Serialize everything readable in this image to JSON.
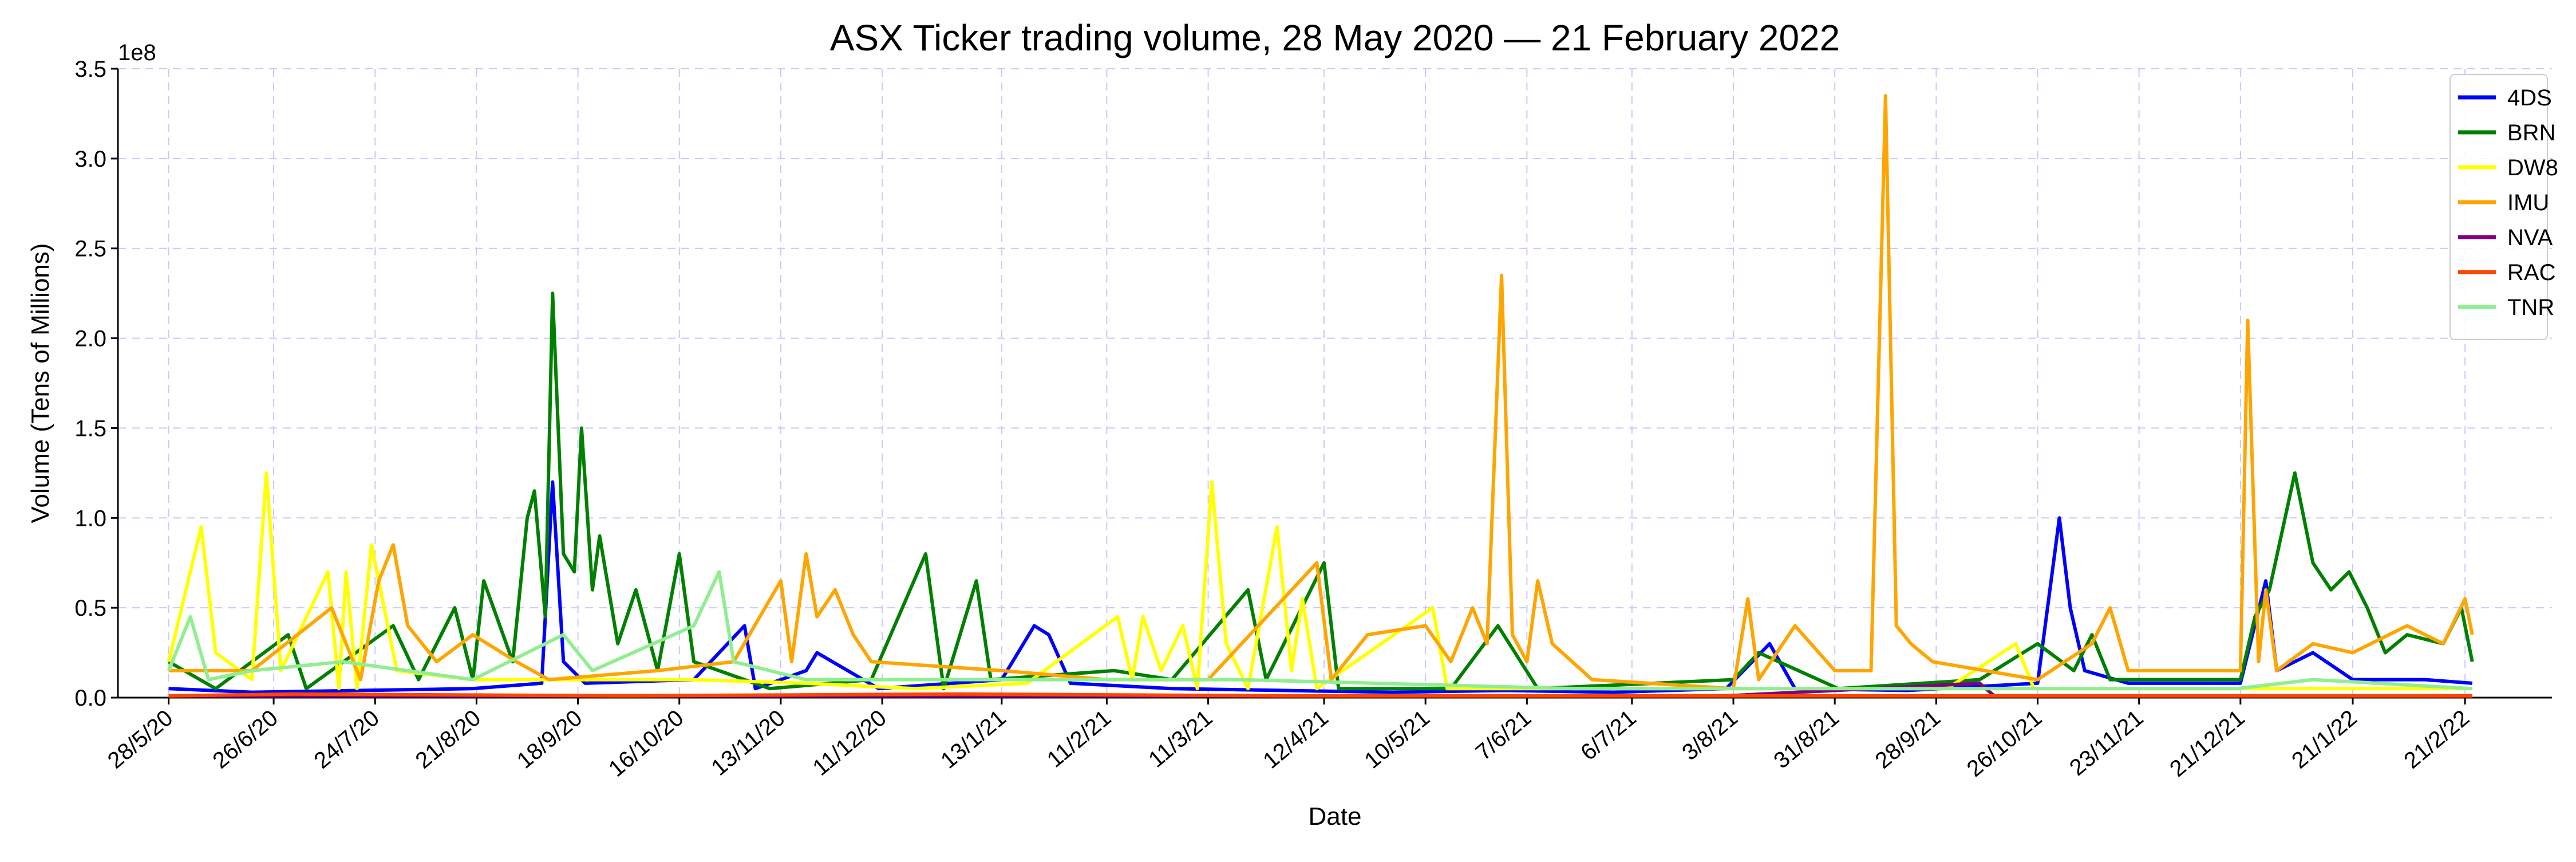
{
  "chart_data": {
    "type": "line",
    "title": "ASX Ticker trading volume, 28 May 2020 — 21 February 2022",
    "xlabel": "Date",
    "ylabel": "Volume (Tens of Millions)",
    "y_offset_text": "1e8",
    "ylim": [
      0,
      350000000
    ],
    "yticks": [
      0,
      50000000,
      100000000,
      150000000,
      200000000,
      250000000,
      300000000,
      350000000
    ],
    "ytick_labels": [
      "0.0",
      "0.5",
      "1.0",
      "1.5",
      "2.0",
      "2.5",
      "3.0",
      "3.5"
    ],
    "xlim": [
      "2020-05-14",
      "2022-03-17"
    ],
    "xticks": [
      "2020-05-28",
      "2020-06-26",
      "2020-07-24",
      "2020-08-21",
      "2020-09-18",
      "2020-10-16",
      "2020-11-13",
      "2020-12-11",
      "2021-01-13",
      "2021-02-11",
      "2021-03-11",
      "2021-04-12",
      "2021-05-10",
      "2021-06-07",
      "2021-07-06",
      "2021-08-03",
      "2021-08-31",
      "2021-09-28",
      "2021-10-26",
      "2021-11-23",
      "2021-12-21",
      "2022-01-21",
      "2022-02-21"
    ],
    "xtick_labels": [
      "28/5/20",
      "26/6/20",
      "24/7/20",
      "21/8/20",
      "18/9/20",
      "16/10/20",
      "13/11/20",
      "11/12/20",
      "13/1/21",
      "11/2/21",
      "11/3/21",
      "12/4/21",
      "10/5/21",
      "7/6/21",
      "6/7/21",
      "3/8/21",
      "31/8/21",
      "28/9/21",
      "26/10/21",
      "23/11/21",
      "21/12/21",
      "21/1/22",
      "21/2/22"
    ],
    "grid": true,
    "legend_position": "top-right",
    "series": [
      {
        "name": "4DS",
        "color": "#0000ff",
        "points": [
          [
            "2020-05-28",
            5000000
          ],
          [
            "2020-06-20",
            3000000
          ],
          [
            "2020-07-20",
            4000000
          ],
          [
            "2020-08-20",
            5000000
          ],
          [
            "2020-09-08",
            8000000
          ],
          [
            "2020-09-11",
            120000000
          ],
          [
            "2020-09-14",
            20000000
          ],
          [
            "2020-09-20",
            8000000
          ],
          [
            "2020-10-20",
            10000000
          ],
          [
            "2020-11-03",
            40000000
          ],
          [
            "2020-11-06",
            5000000
          ],
          [
            "2020-11-20",
            15000000
          ],
          [
            "2020-11-23",
            25000000
          ],
          [
            "2020-12-10",
            5000000
          ],
          [
            "2021-01-13",
            10000000
          ],
          [
            "2021-01-22",
            40000000
          ],
          [
            "2021-01-26",
            35000000
          ],
          [
            "2021-02-01",
            8000000
          ],
          [
            "2021-03-01",
            5000000
          ],
          [
            "2021-04-01",
            4000000
          ],
          [
            "2021-05-01",
            3000000
          ],
          [
            "2021-06-01",
            4000000
          ],
          [
            "2021-07-01",
            3000000
          ],
          [
            "2021-08-01",
            5000000
          ],
          [
            "2021-08-13",
            30000000
          ],
          [
            "2021-08-20",
            5000000
          ],
          [
            "2021-09-20",
            4000000
          ],
          [
            "2021-10-26",
            8000000
          ],
          [
            "2021-11-01",
            100000000
          ],
          [
            "2021-11-04",
            50000000
          ],
          [
            "2021-11-08",
            15000000
          ],
          [
            "2021-11-20",
            8000000
          ],
          [
            "2021-12-21",
            8000000
          ],
          [
            "2021-12-28",
            65000000
          ],
          [
            "2021-12-31",
            15000000
          ],
          [
            "2022-01-10",
            25000000
          ],
          [
            "2022-01-21",
            10000000
          ],
          [
            "2022-02-10",
            10000000
          ],
          [
            "2022-02-23",
            8000000
          ]
        ]
      },
      {
        "name": "BRN",
        "color": "#008000",
        "points": [
          [
            "2020-05-28",
            20000000
          ],
          [
            "2020-06-10",
            5000000
          ],
          [
            "2020-06-30",
            35000000
          ],
          [
            "2020-07-05",
            5000000
          ],
          [
            "2020-07-29",
            40000000
          ],
          [
            "2020-08-05",
            10000000
          ],
          [
            "2020-08-15",
            50000000
          ],
          [
            "2020-08-20",
            10000000
          ],
          [
            "2020-08-23",
            65000000
          ],
          [
            "2020-08-31",
            20000000
          ],
          [
            "2020-09-04",
            100000000
          ],
          [
            "2020-09-06",
            115000000
          ],
          [
            "2020-09-09",
            45000000
          ],
          [
            "2020-09-11",
            225000000
          ],
          [
            "2020-09-14",
            80000000
          ],
          [
            "2020-09-17",
            70000000
          ],
          [
            "2020-09-19",
            150000000
          ],
          [
            "2020-09-22",
            60000000
          ],
          [
            "2020-09-24",
            90000000
          ],
          [
            "2020-09-29",
            30000000
          ],
          [
            "2020-10-04",
            60000000
          ],
          [
            "2020-10-10",
            15000000
          ],
          [
            "2020-10-16",
            80000000
          ],
          [
            "2020-10-20",
            20000000
          ],
          [
            "2020-11-10",
            5000000
          ],
          [
            "2020-12-08",
            10000000
          ],
          [
            "2020-12-23",
            80000000
          ],
          [
            "2020-12-28",
            5000000
          ],
          [
            "2021-01-06",
            65000000
          ],
          [
            "2021-01-10",
            10000000
          ],
          [
            "2021-02-13",
            15000000
          ],
          [
            "2021-03-01",
            10000000
          ],
          [
            "2021-03-22",
            60000000
          ],
          [
            "2021-03-27",
            10000000
          ],
          [
            "2021-04-12",
            75000000
          ],
          [
            "2021-04-16",
            5000000
          ],
          [
            "2021-05-17",
            5000000
          ],
          [
            "2021-05-30",
            40000000
          ],
          [
            "2021-06-10",
            5000000
          ],
          [
            "2021-08-03",
            10000000
          ],
          [
            "2021-08-10",
            25000000
          ],
          [
            "2021-09-01",
            5000000
          ],
          [
            "2021-10-10",
            10000000
          ],
          [
            "2021-10-26",
            30000000
          ],
          [
            "2021-11-05",
            15000000
          ],
          [
            "2021-11-10",
            35000000
          ],
          [
            "2021-11-15",
            10000000
          ],
          [
            "2021-12-21",
            10000000
          ],
          [
            "2021-12-25",
            45000000
          ],
          [
            "2021-12-29",
            60000000
          ],
          [
            "2022-01-05",
            125000000
          ],
          [
            "2022-01-10",
            75000000
          ],
          [
            "2022-01-15",
            60000000
          ],
          [
            "2022-01-20",
            70000000
          ],
          [
            "2022-01-25",
            50000000
          ],
          [
            "2022-01-30",
            25000000
          ],
          [
            "2022-02-05",
            35000000
          ],
          [
            "2022-02-15",
            30000000
          ],
          [
            "2022-02-20",
            50000000
          ],
          [
            "2022-02-23",
            20000000
          ]
        ]
      },
      {
        "name": "DW8",
        "color": "#ffff00",
        "points": [
          [
            "2020-05-28",
            20000000
          ],
          [
            "2020-06-06",
            95000000
          ],
          [
            "2020-06-10",
            25000000
          ],
          [
            "2020-06-20",
            10000000
          ],
          [
            "2020-06-24",
            125000000
          ],
          [
            "2020-06-28",
            15000000
          ],
          [
            "2020-07-11",
            70000000
          ],
          [
            "2020-07-14",
            5000000
          ],
          [
            "2020-07-16",
            70000000
          ],
          [
            "2020-07-19",
            5000000
          ],
          [
            "2020-07-23",
            85000000
          ],
          [
            "2020-07-30",
            15000000
          ],
          [
            "2020-08-20",
            10000000
          ],
          [
            "2020-09-20",
            10000000
          ],
          [
            "2020-10-20",
            10000000
          ],
          [
            "2020-11-20",
            8000000
          ],
          [
            "2020-12-20",
            5000000
          ],
          [
            "2021-01-20",
            8000000
          ],
          [
            "2021-02-14",
            45000000
          ],
          [
            "2021-02-18",
            10000000
          ],
          [
            "2021-02-21",
            45000000
          ],
          [
            "2021-02-26",
            15000000
          ],
          [
            "2021-03-04",
            40000000
          ],
          [
            "2021-03-08",
            5000000
          ],
          [
            "2021-03-12",
            120000000
          ],
          [
            "2021-03-16",
            30000000
          ],
          [
            "2021-03-22",
            5000000
          ],
          [
            "2021-03-30",
            95000000
          ],
          [
            "2021-04-03",
            15000000
          ],
          [
            "2021-04-06",
            55000000
          ],
          [
            "2021-04-10",
            5000000
          ],
          [
            "2021-05-12",
            50000000
          ],
          [
            "2021-05-16",
            5000000
          ],
          [
            "2021-07-01",
            5000000
          ],
          [
            "2021-08-01",
            5000000
          ],
          [
            "2021-10-01",
            5000000
          ],
          [
            "2021-10-20",
            30000000
          ],
          [
            "2021-10-25",
            5000000
          ],
          [
            "2021-12-01",
            5000000
          ],
          [
            "2022-01-01",
            5000000
          ],
          [
            "2022-02-23",
            5000000
          ]
        ]
      },
      {
        "name": "IMU",
        "color": "#ffa500",
        "points": [
          [
            "2020-05-28",
            15000000
          ],
          [
            "2020-06-20",
            15000000
          ],
          [
            "2020-07-12",
            50000000
          ],
          [
            "2020-07-20",
            10000000
          ],
          [
            "2020-07-25",
            65000000
          ],
          [
            "2020-07-29",
            85000000
          ],
          [
            "2020-08-02",
            40000000
          ],
          [
            "2020-08-10",
            20000000
          ],
          [
            "2020-08-20",
            35000000
          ],
          [
            "2020-09-01",
            20000000
          ],
          [
            "2020-09-10",
            10000000
          ],
          [
            "2020-10-10",
            15000000
          ],
          [
            "2020-10-31",
            20000000
          ],
          [
            "2020-11-13",
            65000000
          ],
          [
            "2020-11-16",
            20000000
          ],
          [
            "2020-11-20",
            80000000
          ],
          [
            "2020-11-23",
            45000000
          ],
          [
            "2020-11-28",
            60000000
          ],
          [
            "2020-12-03",
            35000000
          ],
          [
            "2020-12-08",
            20000000
          ],
          [
            "2021-01-13",
            15000000
          ],
          [
            "2021-02-11",
            10000000
          ],
          [
            "2021-03-11",
            10000000
          ],
          [
            "2021-04-10",
            75000000
          ],
          [
            "2021-04-14",
            10000000
          ],
          [
            "2021-04-24",
            35000000
          ],
          [
            "2021-05-10",
            40000000
          ],
          [
            "2021-05-17",
            20000000
          ],
          [
            "2021-05-23",
            50000000
          ],
          [
            "2021-05-27",
            30000000
          ],
          [
            "2021-05-31",
            235000000
          ],
          [
            "2021-06-03",
            35000000
          ],
          [
            "2021-06-07",
            20000000
          ],
          [
            "2021-06-10",
            65000000
          ],
          [
            "2021-06-14",
            30000000
          ],
          [
            "2021-06-25",
            10000000
          ],
          [
            "2021-08-03",
            5000000
          ],
          [
            "2021-08-07",
            55000000
          ],
          [
            "2021-08-10",
            10000000
          ],
          [
            "2021-08-20",
            40000000
          ],
          [
            "2021-08-31",
            15000000
          ],
          [
            "2021-09-10",
            15000000
          ],
          [
            "2021-09-14",
            335000000
          ],
          [
            "2021-09-17",
            40000000
          ],
          [
            "2021-09-21",
            30000000
          ],
          [
            "2021-09-27",
            20000000
          ],
          [
            "2021-10-26",
            10000000
          ],
          [
            "2021-11-10",
            30000000
          ],
          [
            "2021-11-15",
            50000000
          ],
          [
            "2021-11-20",
            15000000
          ],
          [
            "2021-12-10",
            15000000
          ],
          [
            "2021-12-21",
            15000000
          ],
          [
            "2021-12-23",
            210000000
          ],
          [
            "2021-12-26",
            20000000
          ],
          [
            "2021-12-28",
            60000000
          ],
          [
            "2021-12-31",
            15000000
          ],
          [
            "2022-01-10",
            30000000
          ],
          [
            "2022-01-21",
            25000000
          ],
          [
            "2022-02-05",
            40000000
          ],
          [
            "2022-02-15",
            30000000
          ],
          [
            "2022-02-21",
            55000000
          ],
          [
            "2022-02-23",
            35000000
          ]
        ]
      },
      {
        "name": "NVA",
        "color": "#800080",
        "points": [
          [
            "2020-05-28",
            1000000
          ],
          [
            "2020-08-01",
            1000000
          ],
          [
            "2020-12-01",
            1000000
          ],
          [
            "2021-04-01",
            1000000
          ],
          [
            "2021-08-01",
            1000000
          ],
          [
            "2021-10-10",
            8000000
          ],
          [
            "2021-10-14",
            1000000
          ],
          [
            "2021-12-01",
            1000000
          ],
          [
            "2022-02-23",
            1000000
          ]
        ]
      },
      {
        "name": "RAC",
        "color": "#ff4500",
        "points": [
          [
            "2020-05-28",
            1000000
          ],
          [
            "2020-07-01",
            2000000
          ],
          [
            "2020-10-01",
            1000000
          ],
          [
            "2021-01-01",
            2000000
          ],
          [
            "2021-04-01",
            1000000
          ],
          [
            "2021-07-01",
            1000000
          ],
          [
            "2021-10-01",
            1000000
          ],
          [
            "2022-01-01",
            1000000
          ],
          [
            "2022-02-23",
            1000000
          ]
        ]
      },
      {
        "name": "TNR",
        "color": "#90ee90",
        "points": [
          [
            "2020-05-28",
            15000000
          ],
          [
            "2020-06-03",
            45000000
          ],
          [
            "2020-06-08",
            10000000
          ],
          [
            "2020-06-20",
            15000000
          ],
          [
            "2020-07-15",
            20000000
          ],
          [
            "2020-08-20",
            10000000
          ],
          [
            "2020-09-14",
            35000000
          ],
          [
            "2020-09-22",
            15000000
          ],
          [
            "2020-10-20",
            40000000
          ],
          [
            "2020-10-27",
            70000000
          ],
          [
            "2020-10-31",
            20000000
          ],
          [
            "2020-11-20",
            10000000
          ],
          [
            "2021-01-20",
            10000000
          ],
          [
            "2021-03-20",
            10000000
          ],
          [
            "2021-06-20",
            5000000
          ],
          [
            "2021-09-20",
            5000000
          ],
          [
            "2021-12-20",
            5000000
          ],
          [
            "2022-01-10",
            10000000
          ],
          [
            "2022-02-23",
            5000000
          ]
        ]
      }
    ]
  }
}
